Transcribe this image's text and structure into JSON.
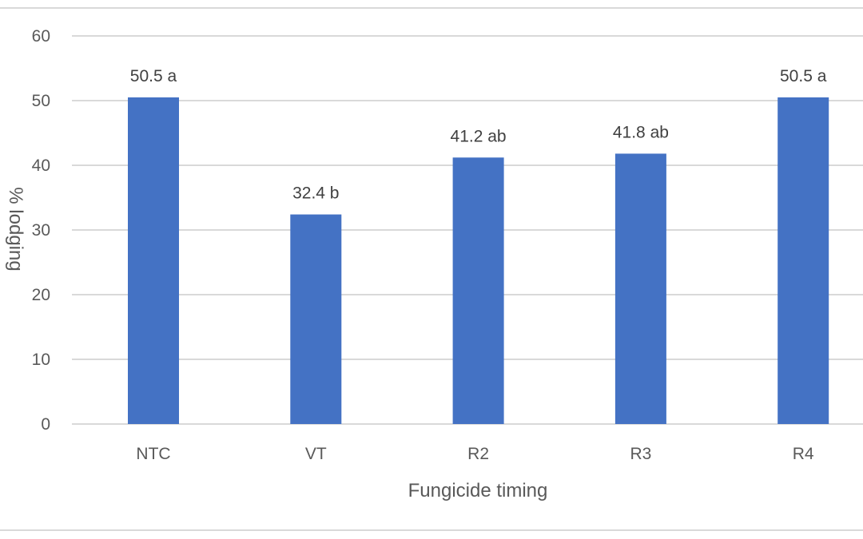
{
  "chart_data": {
    "type": "bar",
    "categories": [
      "NTC",
      "VT",
      "R2",
      "R3",
      "R4"
    ],
    "values": [
      50.5,
      32.4,
      41.2,
      41.8,
      50.5
    ],
    "data_labels": [
      "50.5 a",
      "32.4 b",
      "41.2 ab",
      "41.8 ab",
      "50.5 a"
    ],
    "title": "",
    "xlabel": "Fungicide timing",
    "ylabel": "% lodging",
    "ylim": [
      0,
      60
    ],
    "yticks": [
      0,
      10,
      20,
      30,
      40,
      50,
      60
    ],
    "grid": true,
    "legend": "none",
    "bar_color": "#4472C4",
    "grid_color": "#D9D9D9"
  }
}
